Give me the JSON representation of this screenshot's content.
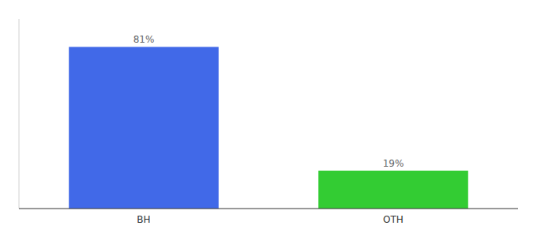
{
  "chart_data": {
    "type": "bar",
    "categories": [
      "BH",
      "OTH"
    ],
    "values": [
      81,
      19
    ],
    "value_labels": [
      "81%",
      "19%"
    ],
    "colors": [
      "#4169e8",
      "#33cc33"
    ],
    "ylim": [
      0,
      95
    ],
    "yticks": [],
    "tick_labels": "x",
    "data_labels": true,
    "grid": false
  }
}
